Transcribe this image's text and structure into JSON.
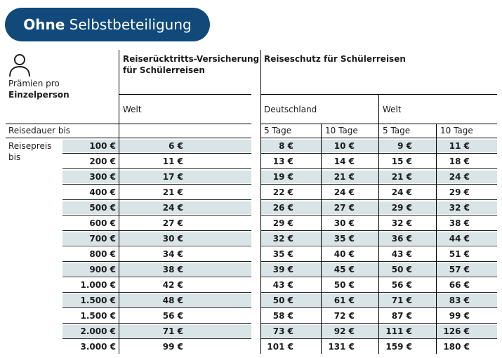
{
  "title": {
    "bold": "Ohne",
    "regular": "Selbstbeteiligung"
  },
  "header": {
    "praemien_line1": "Prämien pro",
    "praemien_line2": "Einzelperson",
    "col_ruecktritt_line1": "Reiserücktritts-Versicherung",
    "col_ruecktritt_line2": "für Schülerreisen",
    "col_reiseschutz": "Reiseschutz für Schülerreisen",
    "welt_1": "Welt",
    "deutschland": "Deutschland",
    "welt_2": "Welt",
    "reisedauer": "Reisedauer bis",
    "d5_1": "5 Tage",
    "d10_1": "10 Tage",
    "d5_2": "5 Tage",
    "d10_2": "10 Tage",
    "reisepreis_line1": "Reisepreis",
    "reisepreis_line2": "bis"
  },
  "rows": [
    {
      "price": "100 €",
      "welt": "6 €",
      "de5": "8 €",
      "de10": "10 €",
      "w5": "9 €",
      "w10": "11 €"
    },
    {
      "price": "200 €",
      "welt": "11 €",
      "de5": "13 €",
      "de10": "14 €",
      "w5": "15 €",
      "w10": "18 €"
    },
    {
      "price": "300 €",
      "welt": "17 €",
      "de5": "19 €",
      "de10": "21 €",
      "w5": "21 €",
      "w10": "24 €"
    },
    {
      "price": "400 €",
      "welt": "21 €",
      "de5": "22 €",
      "de10": "24 €",
      "w5": "24 €",
      "w10": "29 €"
    },
    {
      "price": "500 €",
      "welt": "24 €",
      "de5": "26 €",
      "de10": "27 €",
      "w5": "29 €",
      "w10": "32 €"
    },
    {
      "price": "600 €",
      "welt": "27 €",
      "de5": "29 €",
      "de10": "30 €",
      "w5": "32 €",
      "w10": "38 €"
    },
    {
      "price": "700 €",
      "welt": "30 €",
      "de5": "32 €",
      "de10": "35 €",
      "w5": "36 €",
      "w10": "44 €"
    },
    {
      "price": "800 €",
      "welt": "34 €",
      "de5": "35 €",
      "de10": "40 €",
      "w5": "43 €",
      "w10": "51 €"
    },
    {
      "price": "900 €",
      "welt": "38 €",
      "de5": "39 €",
      "de10": "45 €",
      "w5": "50 €",
      "w10": "57 €"
    },
    {
      "price": "1.000 €",
      "welt": "42 €",
      "de5": "43 €",
      "de10": "50 €",
      "w5": "56 €",
      "w10": "66 €"
    },
    {
      "price": "1.500 €",
      "welt": "48 €",
      "de5": "50 €",
      "de10": "61 €",
      "w5": "71 €",
      "w10": "83 €"
    },
    {
      "price": "1.500 €",
      "welt": "56 €",
      "de5": "58 €",
      "de10": "72 €",
      "w5": "87 €",
      "w10": "99 €"
    },
    {
      "price": "2.000 €",
      "welt": "71 €",
      "de5": "73 €",
      "de10": "92 €",
      "w5": "111 €",
      "w10": "126 €"
    },
    {
      "price": "3.000 €",
      "welt": "99 €",
      "de5": "101 €",
      "de10": "131 €",
      "w5": "159 €",
      "w10": "180 €"
    }
  ],
  "colors": {
    "pill": "#11497a",
    "band": "#d8e4e6"
  },
  "icons": [
    "person-icon"
  ]
}
